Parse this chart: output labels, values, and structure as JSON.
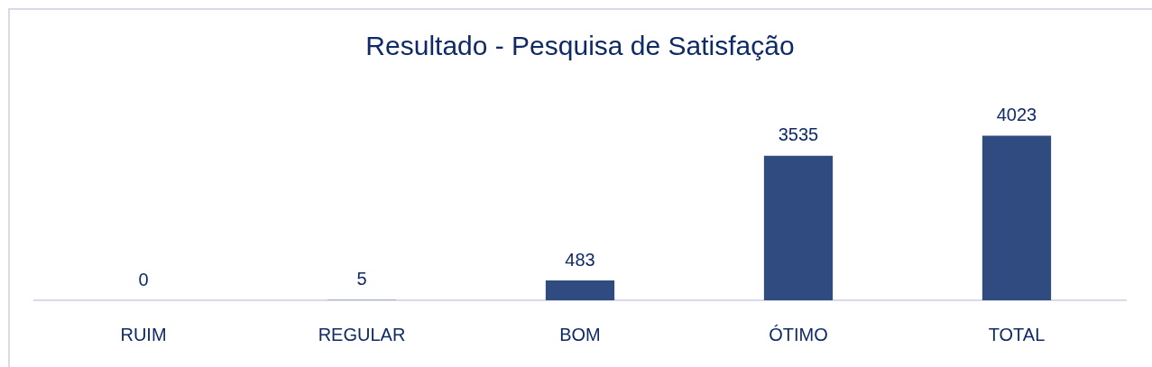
{
  "chart_data": {
    "type": "bar",
    "title": "Resultado - Pesquisa de Satisfação",
    "categories": [
      "RUIM",
      "REGULAR",
      "BOM",
      "ÓTIMO",
      "TOTAL"
    ],
    "values": [
      0,
      5,
      483,
      3535,
      4023
    ],
    "color": "#2f4b80",
    "data_labels": true
  }
}
